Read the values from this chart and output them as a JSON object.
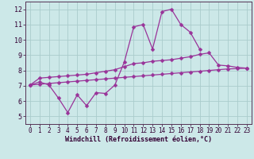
{
  "xlabel": "Windchill (Refroidissement éolien,°C)",
  "background_color": "#cce8e8",
  "grid_color": "#b0d8d8",
  "line_color": "#993399",
  "xlim_min": -0.5,
  "xlim_max": 23.5,
  "ylim_min": 4.5,
  "ylim_max": 12.5,
  "xticks": [
    0,
    1,
    2,
    3,
    4,
    5,
    6,
    7,
    8,
    9,
    10,
    11,
    12,
    13,
    14,
    15,
    16,
    17,
    18,
    19,
    20,
    21,
    22,
    23
  ],
  "yticks": [
    5,
    6,
    7,
    8,
    9,
    10,
    11,
    12
  ],
  "x_line1": [
    0,
    1,
    2,
    3,
    4,
    5,
    6,
    7,
    8,
    9,
    10,
    11,
    12,
    13,
    14,
    15,
    16,
    17,
    18
  ],
  "y_line1": [
    7.05,
    7.25,
    7.05,
    6.2,
    5.25,
    6.4,
    5.7,
    6.55,
    6.5,
    7.05,
    8.55,
    10.85,
    11.0,
    9.4,
    11.85,
    12.0,
    11.0,
    10.5,
    9.4
  ],
  "x_line2": [
    0,
    1,
    2,
    3,
    4,
    5,
    6,
    7,
    8,
    9,
    10,
    11,
    12,
    13,
    14,
    15,
    16,
    17,
    18,
    19,
    20,
    21,
    22,
    23
  ],
  "y_line2": [
    7.05,
    7.5,
    7.55,
    7.6,
    7.65,
    7.7,
    7.75,
    7.85,
    7.95,
    8.05,
    8.25,
    8.45,
    8.5,
    8.6,
    8.65,
    8.7,
    8.8,
    8.9,
    9.05,
    9.15,
    8.35,
    8.3,
    8.2,
    8.15
  ],
  "x_line3": [
    0,
    1,
    2,
    3,
    4,
    5,
    6,
    7,
    8,
    9,
    10,
    11,
    12,
    13,
    14,
    15,
    16,
    17,
    18,
    19,
    20,
    21,
    22,
    23
  ],
  "y_line3": [
    7.05,
    7.1,
    7.15,
    7.2,
    7.25,
    7.3,
    7.35,
    7.4,
    7.45,
    7.5,
    7.55,
    7.6,
    7.65,
    7.7,
    7.75,
    7.8,
    7.85,
    7.9,
    7.95,
    8.0,
    8.05,
    8.1,
    8.12,
    8.15
  ],
  "tick_fontsize": 5.5,
  "xlabel_fontsize": 6.0,
  "marker_size": 2.5,
  "line_width": 0.9
}
